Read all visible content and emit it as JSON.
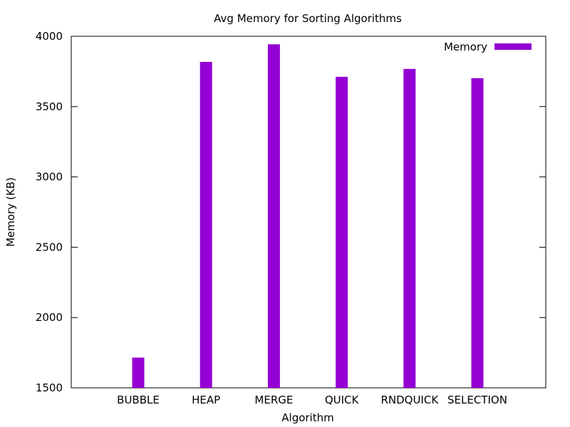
{
  "chart_data": {
    "type": "bar",
    "title": "Avg Memory for Sorting Algorithms",
    "xlabel": "Algorithm",
    "ylabel": "Memory (KB)",
    "categories": [
      "BUBBLE",
      "HEAP",
      "MERGE",
      "QUICK",
      "RNDQUICK",
      "SELECTION"
    ],
    "series": [
      {
        "name": "Memory",
        "values": [
          1715,
          3818,
          3943,
          3712,
          3768,
          3702
        ],
        "color": "#9400D3"
      }
    ],
    "ylim": [
      1500,
      4000
    ],
    "yticks": [
      1500,
      2000,
      2500,
      3000,
      3500,
      4000
    ],
    "grid": false,
    "legend_position": "top-right"
  }
}
